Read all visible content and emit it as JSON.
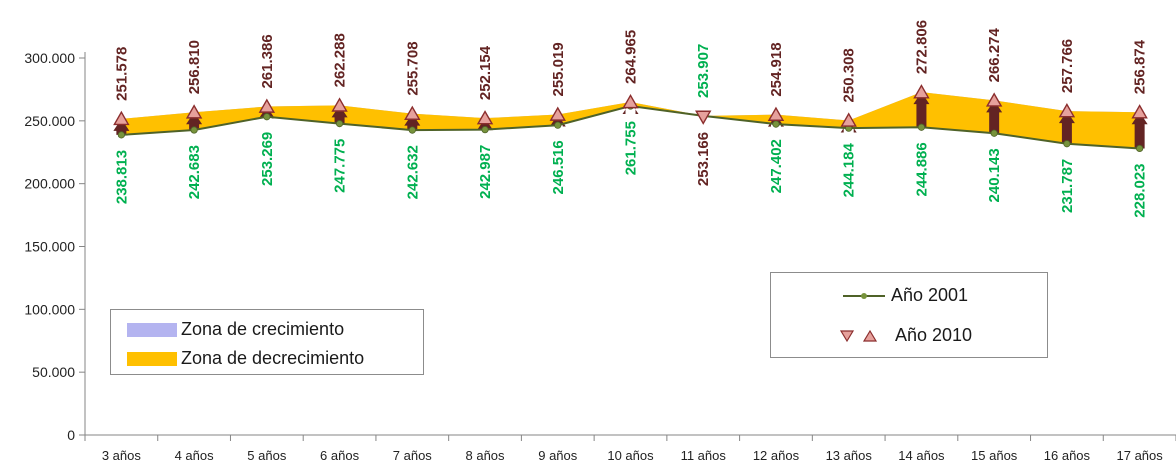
{
  "chart_data": {
    "type": "line",
    "title": "",
    "xlabel": "",
    "ylabel": "",
    "ylim": [
      0,
      300000
    ],
    "yticks": [
      0,
      50000,
      100000,
      150000,
      200000,
      250000,
      300000
    ],
    "ytick_labels": [
      "0",
      "50.000",
      "100.000",
      "150.000",
      "200.000",
      "250.000",
      "300.000"
    ],
    "categories": [
      "3 años",
      "4 años",
      "5 años",
      "6 años",
      "7 años",
      "8 años",
      "9 años",
      "10 años",
      "11 años",
      "12 años",
      "13 años",
      "14 años",
      "15 años",
      "16 años",
      "17 años"
    ],
    "series": [
      {
        "name": "Año 2001",
        "values": [
          238813,
          242683,
          253269,
          247775,
          242632,
          242987,
          246516,
          261755,
          253907,
          247402,
          244184,
          244886,
          240143,
          231787,
          228023
        ],
        "labels": [
          "238.813",
          "242.683",
          "253.269",
          "247.775",
          "242.632",
          "242.987",
          "246.516",
          "261.755",
          "253.907",
          "247.402",
          "244.184",
          "244.886",
          "240.143",
          "231.787",
          "228.023"
        ],
        "color": "#4f6228"
      },
      {
        "name": "Año 2010",
        "values": [
          251578,
          256810,
          261386,
          262288,
          255708,
          252154,
          255019,
          264965,
          253166,
          254918,
          250308,
          272806,
          266274,
          257766,
          256874
        ],
        "labels": [
          "251.578",
          "256.810",
          "261.386",
          "262.288",
          "255.708",
          "252.154",
          "255.019",
          "264.965",
          "253.166",
          "254.918",
          "250.308",
          "272.806",
          "266.274",
          "257.766",
          "256.874"
        ],
        "color": "#e6a19c"
      }
    ],
    "zones": [
      {
        "name": "Zona de crecimiento",
        "color": "#b4b4f0"
      },
      {
        "name": "Zona de decrecimiento",
        "color": "#ffc000"
      }
    ],
    "colors": {
      "increase_label": "#632423",
      "base_label": "#00b050",
      "arrow": "#632423",
      "marker_fill": "#e6a19c",
      "marker_edge": "#8b2e2e",
      "line_marker": "#77933c",
      "axis": "#868686"
    },
    "grid": false,
    "legend": [
      {
        "position": "bottom-left",
        "entries": [
          "Zona de crecimiento",
          "Zona de decrecimiento"
        ]
      },
      {
        "position": "center-right",
        "entries": [
          "Año 2001",
          "Año 2010"
        ]
      }
    ]
  }
}
